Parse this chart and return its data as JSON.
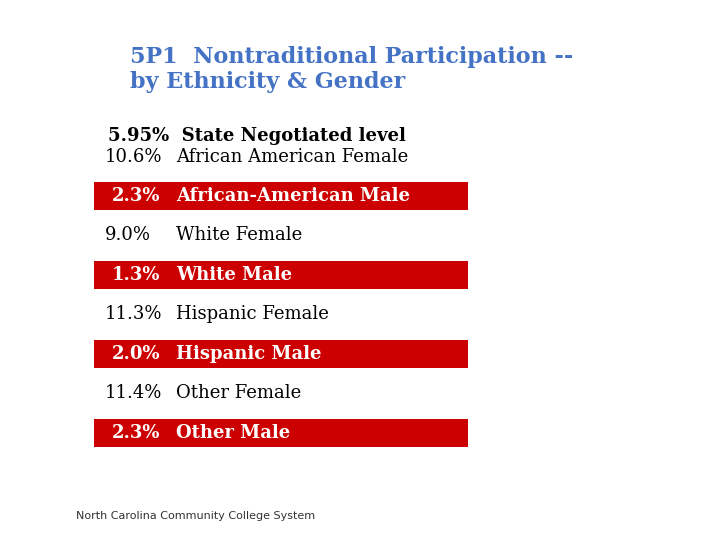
{
  "title_line1": "5P1  Nontraditional Participation --",
  "title_line2": "by Ethnicity & Gender",
  "title_color": "#4472C4",
  "negotiated_label": "5.95%  State Negotiated level",
  "logo_bg_color": "#1F3864",
  "separator_color": "#C9A93C",
  "footer_text": "North Carolina Community College System",
  "rows": [
    {
      "pct": "10.6%",
      "label": "African American Female",
      "highlighted": false
    },
    {
      "pct": "2.3%",
      "label": "African-American Male",
      "highlighted": true
    },
    {
      "pct": "9.0%",
      "label": "White Female",
      "highlighted": false
    },
    {
      "pct": "1.3%",
      "label": "White Male",
      "highlighted": true
    },
    {
      "pct": "11.3%",
      "label": "Hispanic Female",
      "highlighted": false
    },
    {
      "pct": "2.0%",
      "label": "Hispanic Male",
      "highlighted": true
    },
    {
      "pct": "11.4%",
      "label": "Other Female",
      "highlighted": false
    },
    {
      "pct": "2.3%",
      "label": "Other Male",
      "highlighted": true
    }
  ],
  "highlight_bg": "#CC0000",
  "highlight_fg": "#FFFFFF",
  "normal_fg": "#000000",
  "bg_color": "#FFFFFF",
  "row_font_size": 13,
  "negotiated_font_size": 13,
  "title_fontsize": 16,
  "footer_fontsize": 8
}
